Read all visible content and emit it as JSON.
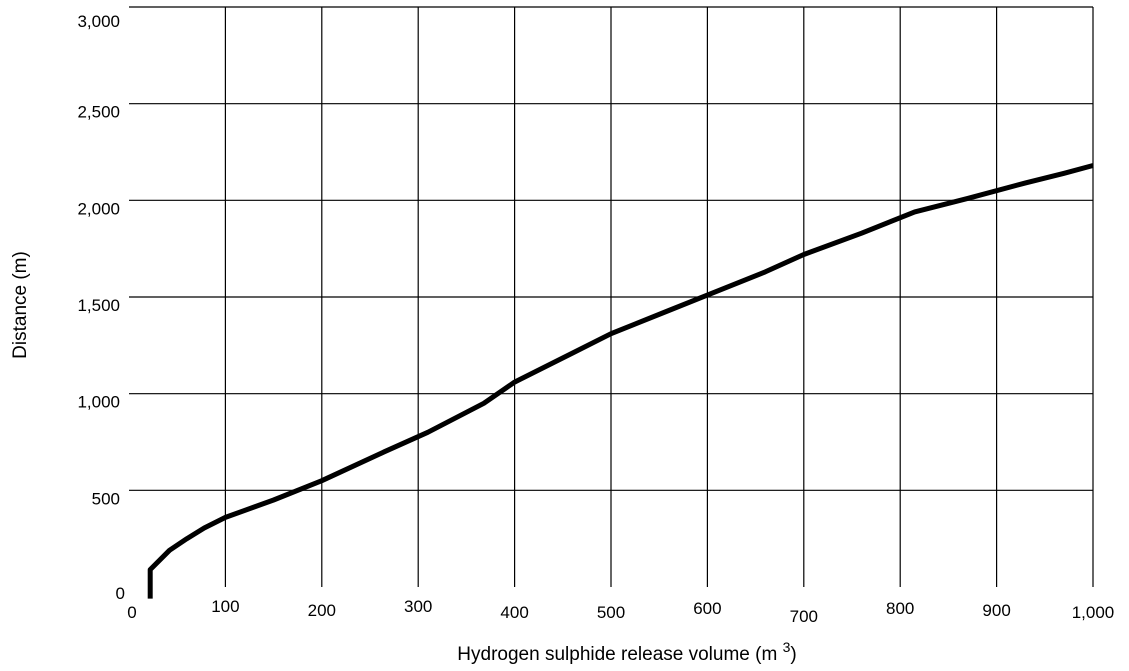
{
  "chart_data": {
    "type": "line",
    "title": "",
    "xlabel": "Hydrogen sulphide release volume (m ",
    "xlabel_superscript": "3",
    "xlabel_suffix": ")",
    "ylabel": "Distance (m)",
    "xlim": [
      0,
      1000
    ],
    "ylim": [
      0,
      3000
    ],
    "x_ticks": [
      0,
      100,
      200,
      300,
      400,
      500,
      600,
      700,
      800,
      900,
      1000
    ],
    "x_tick_labels": [
      "0",
      "100",
      "200",
      "300",
      "400",
      "500",
      "600",
      "700",
      "800",
      "900",
      "1,000"
    ],
    "y_ticks": [
      0,
      500,
      1000,
      1500,
      2000,
      2500,
      3000
    ],
    "y_tick_labels": [
      "0",
      "500",
      "1,000",
      "1,500",
      "2,000",
      "2,500",
      "3,000"
    ],
    "grid": true,
    "legend": "none",
    "series": [
      {
        "color": "#000000",
        "x": [
          22,
          22,
          42,
          60,
          78,
          100,
          150,
          200,
          265,
          310,
          368,
          400,
          460,
          500,
          560,
          600,
          660,
          700,
          760,
          815,
          870,
          930,
          970,
          1000
        ],
        "y": [
          -60,
          90,
          190,
          250,
          305,
          360,
          450,
          550,
          700,
          800,
          950,
          1060,
          1210,
          1310,
          1430,
          1510,
          1630,
          1720,
          1830,
          1940,
          2010,
          2090,
          2140,
          2180
        ]
      }
    ]
  }
}
